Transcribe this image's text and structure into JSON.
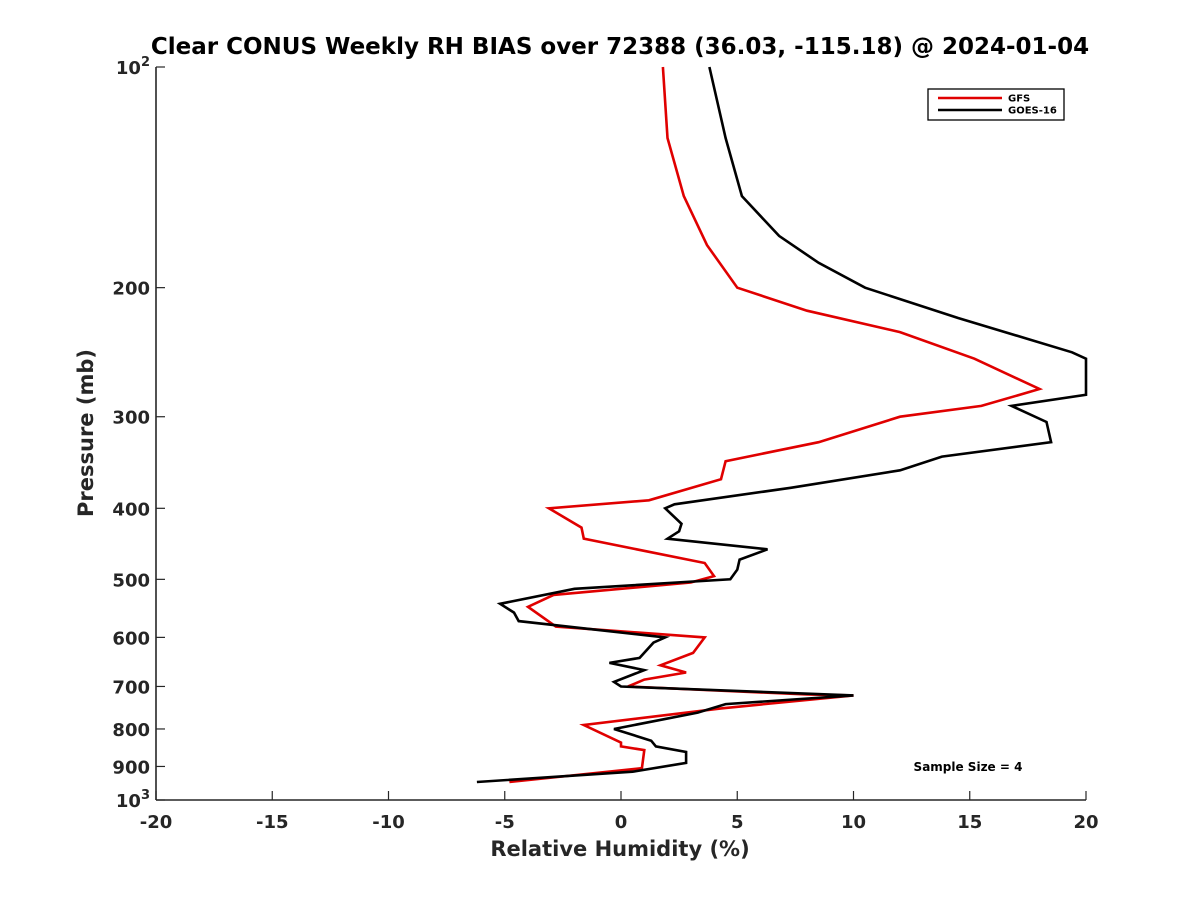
{
  "chart_data": {
    "type": "line",
    "title": "Clear CONUS Weekly RH BIAS over 72388 (36.03, -115.18) @ 2024-01-04",
    "xlabel": "Relative Humidity (%)",
    "ylabel": "Pressure (mb)",
    "xlim": [
      -20,
      20
    ],
    "ylim": [
      100,
      1000
    ],
    "y_scale": "log",
    "y_reversed": true,
    "grid": false,
    "legend_position": "top-right",
    "x_ticks": [
      -20,
      -15,
      -10,
      -5,
      0,
      5,
      10,
      15,
      20
    ],
    "x_tick_labels": [
      "-20",
      "-15",
      "-10",
      "-5",
      "0",
      "5",
      "10",
      "15",
      "20"
    ],
    "y_ticks": [
      {
        "value": 100,
        "base": "10",
        "exp": "2"
      },
      {
        "value": 200,
        "label": "200"
      },
      {
        "value": 300,
        "label": "300"
      },
      {
        "value": 400,
        "label": "400"
      },
      {
        "value": 500,
        "label": "500"
      },
      {
        "value": 600,
        "label": "600"
      },
      {
        "value": 700,
        "label": "700"
      },
      {
        "value": 800,
        "label": "800"
      },
      {
        "value": 900,
        "label": "900"
      },
      {
        "value": 1000,
        "base": "10",
        "exp": "3"
      }
    ],
    "annotation": "Sample Size = 4",
    "series": [
      {
        "name": "GFS",
        "color": "#e00000",
        "points": [
          [
            1.8,
            100
          ],
          [
            2.0,
            125
          ],
          [
            2.7,
            150
          ],
          [
            3.7,
            175
          ],
          [
            5.0,
            200
          ],
          [
            8.0,
            215
          ],
          [
            12.0,
            230
          ],
          [
            15.2,
            250
          ],
          [
            18.0,
            275
          ],
          [
            15.5,
            290
          ],
          [
            12.0,
            300
          ],
          [
            8.5,
            325
          ],
          [
            4.5,
            345
          ],
          [
            4.3,
            365
          ],
          [
            1.2,
            390
          ],
          [
            -3.1,
            400
          ],
          [
            -1.7,
            425
          ],
          [
            -1.6,
            440
          ],
          [
            3.6,
            475
          ],
          [
            4.0,
            495
          ],
          [
            3.0,
            505
          ],
          [
            -2.9,
            525
          ],
          [
            -4.0,
            545
          ],
          [
            -2.8,
            580
          ],
          [
            3.6,
            600
          ],
          [
            3.1,
            630
          ],
          [
            1.7,
            655
          ],
          [
            2.8,
            670
          ],
          [
            1.0,
            685
          ],
          [
            0.3,
            700
          ],
          [
            8.0,
            718
          ],
          [
            10.0,
            720
          ],
          [
            4.3,
            750
          ],
          [
            -1.6,
            790
          ],
          [
            0.0,
            835
          ],
          [
            0.0,
            845
          ],
          [
            1.0,
            855
          ],
          [
            0.9,
            905
          ],
          [
            -4.8,
            945
          ]
        ]
      },
      {
        "name": "GOES-16",
        "color": "#000000",
        "points": [
          [
            3.8,
            100
          ],
          [
            4.5,
            125
          ],
          [
            5.2,
            150
          ],
          [
            6.8,
            170
          ],
          [
            8.5,
            185
          ],
          [
            10.5,
            200
          ],
          [
            14.5,
            220
          ],
          [
            17.5,
            235
          ],
          [
            19.4,
            245
          ],
          [
            20.0,
            250
          ],
          [
            20.0,
            280
          ],
          [
            16.8,
            290
          ],
          [
            18.3,
            305
          ],
          [
            18.5,
            325
          ],
          [
            13.8,
            340
          ],
          [
            12.0,
            355
          ],
          [
            7.3,
            375
          ],
          [
            2.3,
            395
          ],
          [
            1.9,
            400
          ],
          [
            2.6,
            420
          ],
          [
            2.5,
            430
          ],
          [
            2.0,
            440
          ],
          [
            6.3,
            455
          ],
          [
            5.1,
            470
          ],
          [
            5.0,
            485
          ],
          [
            4.7,
            500
          ],
          [
            -2.0,
            515
          ],
          [
            -5.2,
            540
          ],
          [
            -4.6,
            555
          ],
          [
            -4.4,
            570
          ],
          [
            1.9,
            600
          ],
          [
            1.4,
            610
          ],
          [
            0.8,
            640
          ],
          [
            -0.5,
            650
          ],
          [
            1.0,
            665
          ],
          [
            -0.3,
            690
          ],
          [
            0.0,
            700
          ],
          [
            10.0,
            720
          ],
          [
            4.5,
            740
          ],
          [
            3.3,
            760
          ],
          [
            -0.3,
            800
          ],
          [
            1.3,
            830
          ],
          [
            1.5,
            845
          ],
          [
            2.8,
            860
          ],
          [
            2.8,
            890
          ],
          [
            0.5,
            915
          ],
          [
            -6.2,
            945
          ]
        ]
      }
    ]
  }
}
